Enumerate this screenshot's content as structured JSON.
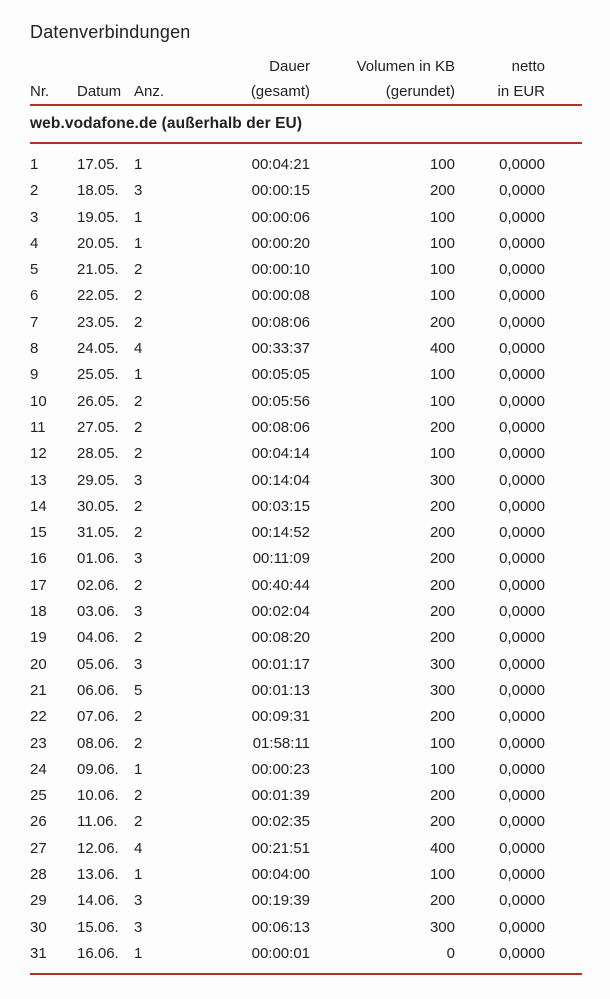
{
  "page": {
    "title": "Datenverbindungen",
    "accent_red": "#b53228",
    "text_color": "#222222",
    "background": "#fdfdfd"
  },
  "table": {
    "section_header": "web.vodafone.de (außerhalb der EU)",
    "columns": [
      {
        "id": "nr",
        "line1": "",
        "line2": "Nr."
      },
      {
        "id": "datum",
        "line1": "",
        "line2": "Datum"
      },
      {
        "id": "anz",
        "line1": "",
        "line2": "Anz."
      },
      {
        "id": "dauer",
        "line1": "Dauer",
        "line2": "(gesamt)"
      },
      {
        "id": "volumen",
        "line1": "Volumen in KB",
        "line2": "(gerundet)"
      },
      {
        "id": "netto",
        "line1": "netto",
        "line2": "in EUR"
      }
    ],
    "rows": [
      [
        "1",
        "17.05.",
        "1",
        "00:04:21",
        "100",
        "0,0000"
      ],
      [
        "2",
        "18.05.",
        "3",
        "00:00:15",
        "200",
        "0,0000"
      ],
      [
        "3",
        "19.05.",
        "1",
        "00:00:06",
        "100",
        "0,0000"
      ],
      [
        "4",
        "20.05.",
        "1",
        "00:00:20",
        "100",
        "0,0000"
      ],
      [
        "5",
        "21.05.",
        "2",
        "00:00:10",
        "100",
        "0,0000"
      ],
      [
        "6",
        "22.05.",
        "2",
        "00:00:08",
        "100",
        "0,0000"
      ],
      [
        "7",
        "23.05.",
        "2",
        "00:08:06",
        "200",
        "0,0000"
      ],
      [
        "8",
        "24.05.",
        "4",
        "00:33:37",
        "400",
        "0,0000"
      ],
      [
        "9",
        "25.05.",
        "1",
        "00:05:05",
        "100",
        "0,0000"
      ],
      [
        "10",
        "26.05.",
        "2",
        "00:05:56",
        "100",
        "0,0000"
      ],
      [
        "11",
        "27.05.",
        "2",
        "00:08:06",
        "200",
        "0,0000"
      ],
      [
        "12",
        "28.05.",
        "2",
        "00:04:14",
        "100",
        "0,0000"
      ],
      [
        "13",
        "29.05.",
        "3",
        "00:14:04",
        "300",
        "0,0000"
      ],
      [
        "14",
        "30.05.",
        "2",
        "00:03:15",
        "200",
        "0,0000"
      ],
      [
        "15",
        "31.05.",
        "2",
        "00:14:52",
        "200",
        "0,0000"
      ],
      [
        "16",
        "01.06.",
        "3",
        "00:11:09",
        "200",
        "0,0000"
      ],
      [
        "17",
        "02.06.",
        "2",
        "00:40:44",
        "200",
        "0,0000"
      ],
      [
        "18",
        "03.06.",
        "3",
        "00:02:04",
        "200",
        "0,0000"
      ],
      [
        "19",
        "04.06.",
        "2",
        "00:08:20",
        "200",
        "0,0000"
      ],
      [
        "20",
        "05.06.",
        "3",
        "00:01:17",
        "300",
        "0,0000"
      ],
      [
        "21",
        "06.06.",
        "5",
        "00:01:13",
        "300",
        "0,0000"
      ],
      [
        "22",
        "07.06.",
        "2",
        "00:09:31",
        "200",
        "0,0000"
      ],
      [
        "23",
        "08.06.",
        "2",
        "01:58:11",
        "100",
        "0,0000"
      ],
      [
        "24",
        "09.06.",
        "1",
        "00:00:23",
        "100",
        "0,0000"
      ],
      [
        "25",
        "10.06.",
        "2",
        "00:01:39",
        "200",
        "0,0000"
      ],
      [
        "26",
        "11.06.",
        "2",
        "00:02:35",
        "200",
        "0,0000"
      ],
      [
        "27",
        "12.06.",
        "4",
        "00:21:51",
        "400",
        "0,0000"
      ],
      [
        "28",
        "13.06.",
        "1",
        "00:04:00",
        "100",
        "0,0000"
      ],
      [
        "29",
        "14.06.",
        "3",
        "00:19:39",
        "200",
        "0,0000"
      ],
      [
        "30",
        "15.06.",
        "3",
        "00:06:13",
        "300",
        "0,0000"
      ],
      [
        "31",
        "16.06.",
        "1",
        "00:00:01",
        "0",
        "0,0000"
      ]
    ]
  }
}
